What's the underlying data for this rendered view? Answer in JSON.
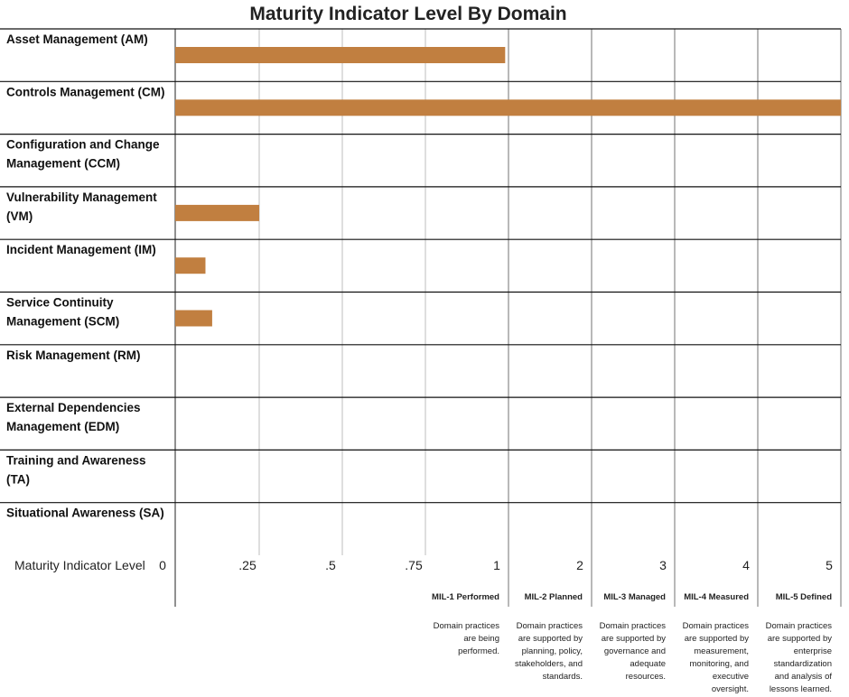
{
  "colors": {
    "bar": "#c17f40",
    "row_line": "#111111",
    "grid_minor": "#c8c8c8",
    "grid_major": "#8a8a8a"
  },
  "chart_data": {
    "type": "bar",
    "orientation": "horizontal",
    "title": "Maturity Indicator Level By Domain",
    "xlabel": "Maturity Indicator Level",
    "grid": true,
    "ticks": [
      {
        "label": "0",
        "value": 0
      },
      {
        "label": ".25",
        "value": 0.25
      },
      {
        "label": ".5",
        "value": 0.5
      },
      {
        "label": ".75",
        "value": 0.75
      },
      {
        "label": "1",
        "value": 1
      },
      {
        "label": "2",
        "value": 2
      },
      {
        "label": "3",
        "value": 3
      },
      {
        "label": "4",
        "value": 4
      },
      {
        "label": "5",
        "value": 5
      }
    ],
    "categories": [
      "Asset Management (AM)",
      "Controls Management (CM)",
      "Configuration and Change Management (CCM)",
      "Vulnerability Management (VM)",
      "Incident Management (IM)",
      "Service Continuity Management (SCM)",
      "Risk Management (RM)",
      "External Dependencies Management (EDM)",
      "Training and Awareness (TA)",
      "Situational Awareness (SA)"
    ],
    "values": [
      0.99,
      5.0,
      0,
      0.25,
      0.09,
      0.11,
      0,
      0,
      0,
      0
    ],
    "levels": [
      {
        "name": "MIL-1 Performed",
        "description": "Domain practices are being performed."
      },
      {
        "name": "MIL-2 Planned",
        "description": "Domain practices are supported by planning, policy, stakeholders, and standards."
      },
      {
        "name": "MIL-3 Managed",
        "description": "Domain practices are supported by governance and adequate resources."
      },
      {
        "name": "MIL-4 Measured",
        "description": "Domain practices are supported by measurement, monitoring, and executive oversight."
      },
      {
        "name": "MIL-5 Defined",
        "description": "Domain practices are supported by enterprise standardization and analysis of lessons learned."
      }
    ]
  }
}
